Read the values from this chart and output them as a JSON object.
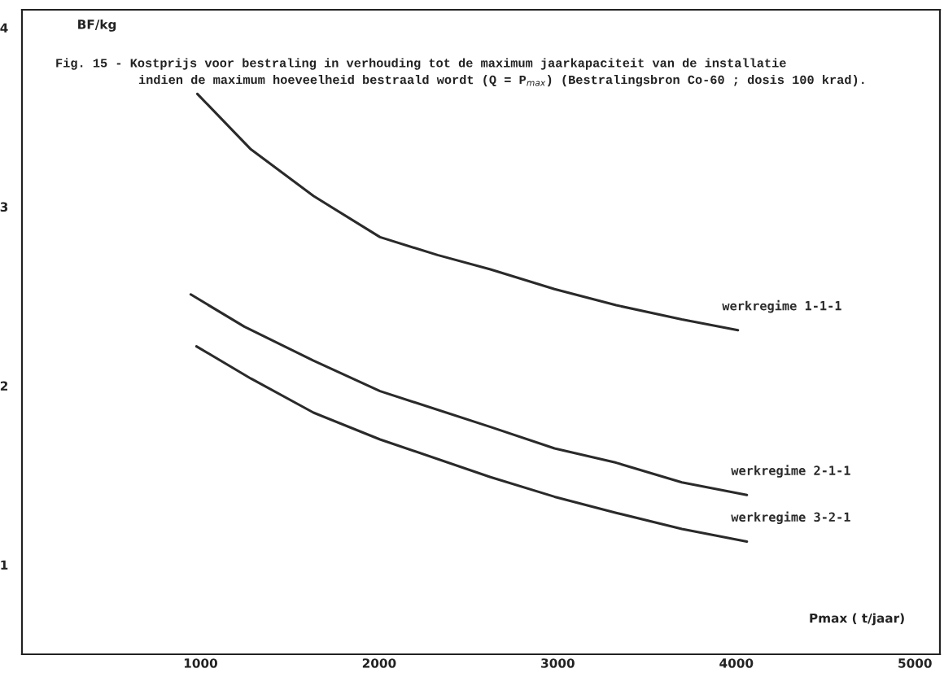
{
  "chart_data": {
    "type": "line",
    "title": "Fig. 15 - Kostprijs voor bestraling in verhouding tot de maximum jaarkapaciteit van de installatie\nindien de maximum hoeveelheid bestraald wordt (Q = P$_{max}$) (Bestralingsbron Co-60 ; dosis 100 krad).",
    "xlabel": "Pmax ( t/jaar)",
    "ylabel": "BF/kg",
    "xlim": [
      0,
      5140
    ],
    "ylim": [
      0.5,
      4.1
    ],
    "xticks": [
      1000,
      2000,
      3000,
      4000,
      5000
    ],
    "yticks": [
      1,
      2,
      3,
      4
    ],
    "grid": false,
    "legend": false,
    "marker": "none",
    "line_style": "solid",
    "series": [
      {
        "name": "werkregime 1-1-1",
        "color": "#2a2a2a",
        "x": [
          982,
          1282,
          1632,
          2005,
          2327,
          2623,
          2982,
          3327,
          3695,
          4009
        ],
        "values": [
          3.63,
          3.32,
          3.06,
          2.83,
          2.73,
          2.65,
          2.54,
          2.45,
          2.37,
          2.31
        ]
      },
      {
        "name": "werkregime 2-1-1",
        "color": "#2a2a2a",
        "x": [
          945,
          1245,
          1632,
          2005,
          2623,
          2982,
          3327,
          3695,
          4059
        ],
        "values": [
          2.51,
          2.33,
          2.14,
          1.97,
          1.77,
          1.65,
          1.57,
          1.46,
          1.39
        ]
      },
      {
        "name": "werkregime 3-2-1",
        "color": "#2a2a2a",
        "x": [
          977,
          1282,
          1632,
          2005,
          2623,
          2982,
          3327,
          3695,
          4059
        ],
        "values": [
          2.22,
          2.04,
          1.85,
          1.7,
          1.49,
          1.38,
          1.29,
          1.2,
          1.13
        ]
      }
    ]
  }
}
